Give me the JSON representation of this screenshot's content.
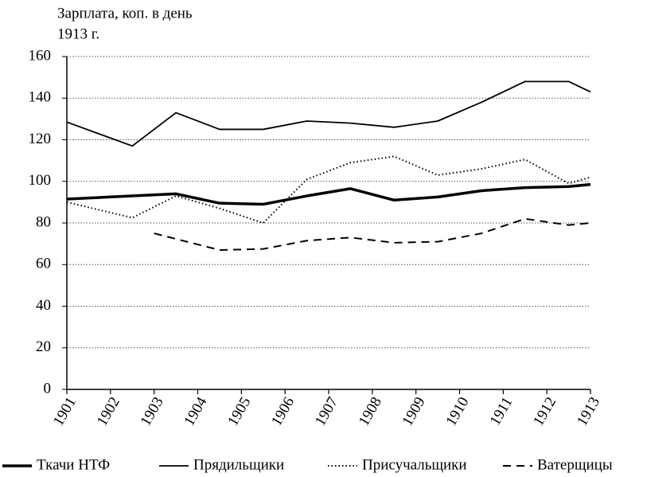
{
  "chart_data": {
    "type": "line",
    "title": "Зарплата, коп. в день",
    "subtitle": "1913 г.",
    "xlim": [
      1901,
      1913
    ],
    "xticks": [
      1901,
      1902,
      1903,
      1904,
      1905,
      1906,
      1907,
      1908,
      1909,
      1910,
      1911,
      1912,
      1913
    ],
    "ylim": [
      0,
      160
    ],
    "yticks": [
      0,
      20,
      40,
      60,
      80,
      100,
      120,
      140,
      160
    ],
    "grid": true,
    "legend": "bottom",
    "series": [
      {
        "name": "Ткачи НТФ",
        "color": "#000000",
        "style": "thick",
        "x": [
          1901,
          1902.5,
          1903.5,
          1904.5,
          1905.5,
          1906.5,
          1907.5,
          1908.5,
          1909.5,
          1910.5,
          1911.5,
          1912.5,
          1913
        ],
        "values": [
          91.5,
          93,
          94,
          89.5,
          89,
          93,
          96.5,
          91,
          92.5,
          95.5,
          97,
          97.5,
          98.5
        ]
      },
      {
        "name": "Прядильщики",
        "color": "#000000",
        "style": "solid",
        "x": [
          1901,
          1902.5,
          1903.5,
          1904.5,
          1905.5,
          1906.5,
          1907.5,
          1908.5,
          1909.5,
          1910.5,
          1911.5,
          1912.5,
          1913
        ],
        "values": [
          128.5,
          117,
          133,
          125,
          125,
          129,
          128,
          126,
          129,
          138,
          148,
          148,
          143
        ]
      },
      {
        "name": "Присучальщики",
        "color": "#000000",
        "style": "dotted",
        "x": [
          1901,
          1902.5,
          1903.5,
          1904.5,
          1905.5,
          1906.5,
          1907.5,
          1908.5,
          1909.5,
          1910.5,
          1911.5,
          1912.5,
          1913
        ],
        "values": [
          90,
          82.5,
          93,
          87,
          80,
          101,
          109,
          112,
          103,
          106,
          110.5,
          99,
          102
        ]
      },
      {
        "name": "Ватерщицы",
        "color": "#000000",
        "style": "dashed",
        "x": [
          1903,
          1904.5,
          1905.5,
          1906.5,
          1907.5,
          1908.5,
          1909.5,
          1910.5,
          1911.5,
          1912.5,
          1913
        ],
        "values": [
          75,
          67,
          67.5,
          71.5,
          73,
          70.5,
          71,
          75,
          82,
          79,
          80
        ]
      }
    ]
  }
}
